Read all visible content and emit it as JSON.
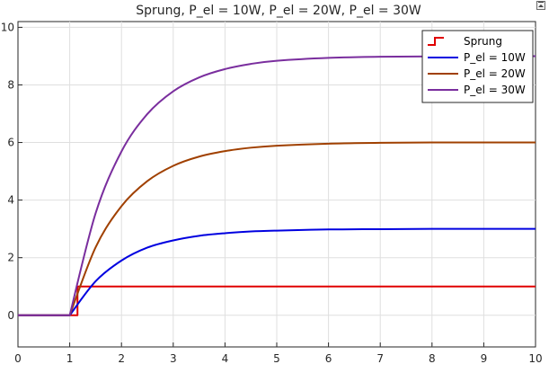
{
  "chart_data": {
    "type": "line",
    "title": "Sprung, P_el = 10W, P_el = 20W, P_el = 30W",
    "xlabel": "",
    "ylabel": "",
    "xlim": [
      0,
      10
    ],
    "ylim": [
      -1.1,
      10.2
    ],
    "xticks": [
      "0",
      "1",
      "2",
      "3",
      "4",
      "5",
      "6",
      "7",
      "8",
      "9",
      "10"
    ],
    "yticks": [
      "0",
      "2",
      "4",
      "6",
      "8",
      "10"
    ],
    "grid": true,
    "legend_position": "top-right",
    "series": [
      {
        "name": "Sprung",
        "color": "#e00000",
        "style": "step",
        "x": [
          0,
          1.15,
          1.15,
          10
        ],
        "y": [
          0,
          0,
          1,
          1
        ]
      },
      {
        "name": "P_el = 10W",
        "color": "#0000e0",
        "style": "line",
        "x": [
          0,
          1,
          1.5,
          2,
          2.5,
          3,
          3.5,
          4,
          4.5,
          5,
          6,
          7,
          8,
          9,
          10
        ],
        "y": [
          0,
          0,
          1.18,
          1.9,
          2.35,
          2.6,
          2.76,
          2.85,
          2.91,
          2.94,
          2.98,
          2.99,
          3.0,
          3.0,
          3.0
        ]
      },
      {
        "name": "P_el = 20W",
        "color": "#a04000",
        "style": "line",
        "x": [
          0,
          1,
          1.5,
          2,
          2.5,
          3,
          3.5,
          4,
          4.5,
          5,
          6,
          7,
          8,
          9,
          10
        ],
        "y": [
          0,
          0,
          2.36,
          3.79,
          4.66,
          5.19,
          5.51,
          5.7,
          5.82,
          5.89,
          5.96,
          5.99,
          6.0,
          6.0,
          6.0
        ]
      },
      {
        "name": "P_el = 30W",
        "color": "#7a2e9e",
        "style": "line",
        "x": [
          0,
          1,
          1.5,
          2,
          2.5,
          3,
          3.5,
          4,
          4.5,
          5,
          6,
          7,
          8,
          9,
          10
        ],
        "y": [
          0,
          0,
          3.54,
          5.69,
          6.99,
          7.78,
          8.26,
          8.55,
          8.73,
          8.84,
          8.94,
          8.98,
          8.99,
          9.0,
          9.0
        ]
      }
    ]
  }
}
